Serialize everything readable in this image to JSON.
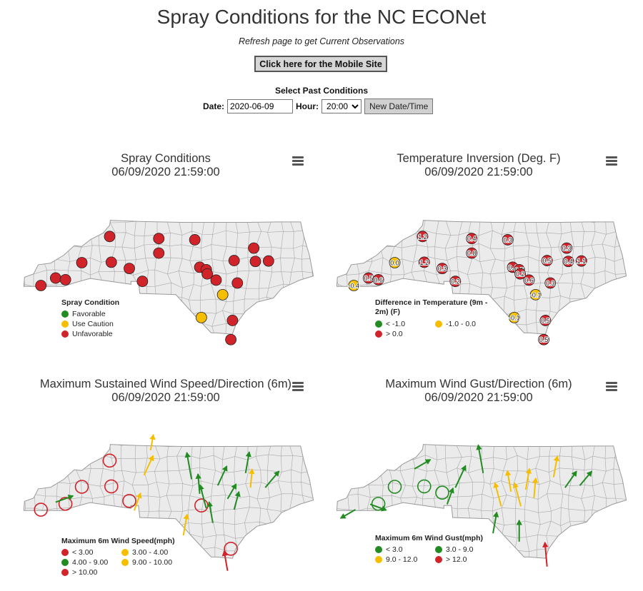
{
  "page": {
    "title": "Spray Conditions for the NC ECONet",
    "subtitle": "Refresh page to get Current Observations",
    "mobile_button": "Click here for the Mobile Site",
    "past_heading": "Select Past Conditions",
    "date_label": "Date:",
    "date_value": "2020-06-09",
    "hour_label": "Hour:",
    "hour_value": "20:00",
    "refresh_button": "New Date/Time"
  },
  "colors": {
    "favorable": "#228B22",
    "caution": "#F6BE00",
    "unfavorable": "#D1232A",
    "map_fill": "#ebebeb",
    "map_border": "#9a9a9a"
  },
  "icons": [
    "menu-icon"
  ],
  "panels": {
    "spray": {
      "title": "Spray Conditions",
      "timestamp": "06/09/2020 21:59:00",
      "legend_title": "Spray Condition",
      "legend": [
        {
          "label": "Favorable",
          "color": "#228B22"
        },
        {
          "label": "Use Caution",
          "color": "#F6BE00"
        },
        {
          "label": "Unfavorable",
          "color": "#D1232A"
        }
      ],
      "stations": [
        {
          "lon": -83.8,
          "lat": 35.02,
          "c": "unfavorable"
        },
        {
          "lon": -83.35,
          "lat": 35.2,
          "c": "unfavorable"
        },
        {
          "lon": -83.05,
          "lat": 35.16,
          "c": "unfavorable"
        },
        {
          "lon": -82.55,
          "lat": 35.57,
          "c": "unfavorable"
        },
        {
          "lon": -81.7,
          "lat": 36.2,
          "c": "unfavorable"
        },
        {
          "lon": -81.65,
          "lat": 35.58,
          "c": "unfavorable"
        },
        {
          "lon": -81.1,
          "lat": 35.43,
          "c": "unfavorable"
        },
        {
          "lon": -80.7,
          "lat": 35.12,
          "c": "unfavorable"
        },
        {
          "lon": -80.2,
          "lat": 36.15,
          "c": "unfavorable"
        },
        {
          "lon": -80.2,
          "lat": 35.8,
          "c": "unfavorable"
        },
        {
          "lon": -79.1,
          "lat": 36.12,
          "c": "unfavorable"
        },
        {
          "lon": -78.95,
          "lat": 35.46,
          "c": "unfavorable"
        },
        {
          "lon": -78.75,
          "lat": 35.4,
          "c": "unfavorable"
        },
        {
          "lon": -78.72,
          "lat": 35.3,
          "c": "unfavorable"
        },
        {
          "lon": -78.45,
          "lat": 35.15,
          "c": "unfavorable"
        },
        {
          "lon": -77.9,
          "lat": 35.62,
          "c": "unfavorable"
        },
        {
          "lon": -77.3,
          "lat": 35.92,
          "c": "unfavorable"
        },
        {
          "lon": -77.25,
          "lat": 35.6,
          "c": "unfavorable"
        },
        {
          "lon": -76.85,
          "lat": 35.61,
          "c": "unfavorable"
        },
        {
          "lon": -77.8,
          "lat": 35.08,
          "c": "unfavorable"
        },
        {
          "lon": -78.25,
          "lat": 34.8,
          "c": "caution"
        },
        {
          "lon": -78.9,
          "lat": 34.25,
          "c": "caution"
        },
        {
          "lon": -77.95,
          "lat": 34.18,
          "c": "unfavorable"
        },
        {
          "lon": -78.0,
          "lat": 33.72,
          "c": "unfavorable"
        }
      ]
    },
    "inversion": {
      "title": "Temperature Inversion (Deg. F)",
      "timestamp": "06/09/2020 21:59:00",
      "legend_title": "Difference in Temperature (9m - 2m) (F)",
      "legend": [
        {
          "label": "< -1.0",
          "color": "#228B22"
        },
        {
          "label": "-1.0 - 0.0",
          "color": "#F6BE00"
        },
        {
          "label": "> 0.0",
          "color": "#D1232A"
        }
      ],
      "stations": [
        {
          "lon": -83.8,
          "lat": 35.02,
          "v": "-0.4",
          "c": "caution"
        },
        {
          "lon": -83.35,
          "lat": 35.2,
          "v": "0.5",
          "c": "unfavorable"
        },
        {
          "lon": -83.05,
          "lat": 35.16,
          "v": "0.6",
          "c": "unfavorable"
        },
        {
          "lon": -82.55,
          "lat": 35.57,
          "v": "0.0",
          "c": "caution"
        },
        {
          "lon": -81.7,
          "lat": 36.2,
          "v": "1.2",
          "c": "unfavorable"
        },
        {
          "lon": -81.65,
          "lat": 35.58,
          "v": "1.2",
          "c": "unfavorable"
        },
        {
          "lon": -81.1,
          "lat": 35.43,
          "v": "0.3",
          "c": "unfavorable"
        },
        {
          "lon": -80.7,
          "lat": 35.12,
          "v": "0.2",
          "c": "unfavorable"
        },
        {
          "lon": -80.2,
          "lat": 36.15,
          "v": "0.4",
          "c": "unfavorable"
        },
        {
          "lon": -80.2,
          "lat": 35.8,
          "v": "0.8",
          "c": "unfavorable"
        },
        {
          "lon": -79.1,
          "lat": 36.12,
          "v": "0.3",
          "c": "unfavorable"
        },
        {
          "lon": -78.95,
          "lat": 35.46,
          "v": "0.4",
          "c": "unfavorable"
        },
        {
          "lon": -78.75,
          "lat": 35.4,
          "v": "0.5",
          "c": "unfavorable"
        },
        {
          "lon": -78.72,
          "lat": 35.3,
          "v": "0.2",
          "c": "unfavorable"
        },
        {
          "lon": -78.45,
          "lat": 35.15,
          "v": "0.6",
          "c": "unfavorable"
        },
        {
          "lon": -77.9,
          "lat": 35.62,
          "v": "0.5",
          "c": "unfavorable"
        },
        {
          "lon": -77.3,
          "lat": 35.92,
          "v": "0.3",
          "c": "unfavorable"
        },
        {
          "lon": -77.25,
          "lat": 35.6,
          "v": "0.4",
          "c": "unfavorable"
        },
        {
          "lon": -76.85,
          "lat": 35.61,
          "v": "1.1",
          "c": "unfavorable"
        },
        {
          "lon": -77.8,
          "lat": 35.08,
          "v": "0.3",
          "c": "unfavorable"
        },
        {
          "lon": -78.25,
          "lat": 34.8,
          "v": "-0.1",
          "c": "caution"
        },
        {
          "lon": -78.9,
          "lat": 34.25,
          "v": "-0.1",
          "c": "caution"
        },
        {
          "lon": -77.95,
          "lat": 34.18,
          "v": "0.5",
          "c": "unfavorable"
        },
        {
          "lon": -78.0,
          "lat": 33.72,
          "v": "0.5",
          "c": "unfavorable"
        }
      ]
    },
    "wind": {
      "title": "Maximum Sustained Wind Speed/Direction (6m)",
      "timestamp": "06/09/2020 21:59:00",
      "legend_title": "Maximum 6m Wind Speed(mph)",
      "legend": [
        {
          "label": "< 3.00",
          "color": "#D1232A"
        },
        {
          "label": "3.00 - 4.00",
          "color": "#F6BE00"
        },
        {
          "label": "4.00 - 9.00",
          "color": "#228B22"
        },
        {
          "label": "9.00 - 10.00",
          "color": "#F6BE00"
        },
        {
          "label": "> 10.00",
          "color": "#D1232A"
        }
      ],
      "calm": [
        {
          "lon": -83.8,
          "lat": 35.02
        },
        {
          "lon": -83.05,
          "lat": 35.16
        },
        {
          "lon": -82.55,
          "lat": 35.57
        },
        {
          "lon": -81.7,
          "lat": 36.2
        },
        {
          "lon": -81.65,
          "lat": 35.58
        },
        {
          "lon": -81.1,
          "lat": 35.23
        },
        {
          "lon": -78.9,
          "lat": 35.12
        },
        {
          "lon": -78.0,
          "lat": 34.08
        }
      ],
      "arrows": [
        {
          "lon": -83.35,
          "lat": 35.2,
          "dir": 70,
          "len": 26,
          "c": "favorable"
        },
        {
          "lon": -80.95,
          "lat": 35.0,
          "dir": 20,
          "len": 26,
          "c": "caution"
        },
        {
          "lon": -80.65,
          "lat": 35.85,
          "dir": 25,
          "len": 30,
          "c": "caution"
        },
        {
          "lon": -80.45,
          "lat": 36.45,
          "dir": 10,
          "len": 22,
          "c": "caution"
        },
        {
          "lon": -79.2,
          "lat": 35.75,
          "dir": -10,
          "len": 38,
          "c": "favorable"
        },
        {
          "lon": -78.95,
          "lat": 35.4,
          "dir": -5,
          "len": 28,
          "c": "favorable"
        },
        {
          "lon": -78.75,
          "lat": 35.05,
          "dir": -15,
          "len": 34,
          "c": "favorable"
        },
        {
          "lon": -78.55,
          "lat": 34.7,
          "dir": -10,
          "len": 30,
          "c": "favorable"
        },
        {
          "lon": -78.4,
          "lat": 35.6,
          "dir": 25,
          "len": 30,
          "c": "favorable"
        },
        {
          "lon": -78.1,
          "lat": 35.28,
          "dir": 30,
          "len": 24,
          "c": "favorable"
        },
        {
          "lon": -77.9,
          "lat": 35.02,
          "dir": 15,
          "len": 26,
          "c": "favorable"
        },
        {
          "lon": -77.55,
          "lat": 35.9,
          "dir": 10,
          "len": 30,
          "c": "favorable"
        },
        {
          "lon": -77.4,
          "lat": 35.55,
          "dir": 5,
          "len": 26,
          "c": "caution"
        },
        {
          "lon": -76.95,
          "lat": 35.55,
          "dir": 40,
          "len": 30,
          "c": "favorable"
        },
        {
          "lon": -79.45,
          "lat": 34.4,
          "dir": 10,
          "len": 30,
          "c": "caution"
        },
        {
          "lon": -78.1,
          "lat": 33.55,
          "dir": -10,
          "len": 28,
          "c": "unfavorable"
        }
      ]
    },
    "gust": {
      "title": "Maximum Wind Gust/Direction (6m)",
      "timestamp": "06/09/2020 21:59:00",
      "legend_title": "Maximum 6m Wind Gust(mph)",
      "legend": [
        {
          "label": "< 3.0",
          "color": "#228B22"
        },
        {
          "label": "3.0 - 9.0",
          "color": "#228B22"
        },
        {
          "label": "9.0 - 12.0",
          "color": "#F6BE00"
        },
        {
          "label": "> 12.0",
          "color": "#D1232A"
        }
      ],
      "calm": [
        {
          "lon": -83.05,
          "lat": 35.16
        },
        {
          "lon": -82.55,
          "lat": 35.57
        },
        {
          "lon": -81.65,
          "lat": 35.58
        },
        {
          "lon": -81.1,
          "lat": 35.43
        }
      ],
      "arrows": [
        {
          "lon": -83.75,
          "lat": 35.02,
          "dir": -120,
          "len": 24,
          "c": "favorable"
        },
        {
          "lon": -83.3,
          "lat": 35.15,
          "dir": 110,
          "len": 24,
          "c": "favorable"
        },
        {
          "lon": -81.95,
          "lat": 36.0,
          "dir": 60,
          "len": 26,
          "c": "favorable"
        },
        {
          "lon": -80.7,
          "lat": 35.55,
          "dir": 25,
          "len": 34,
          "c": "favorable"
        },
        {
          "lon": -80.95,
          "lat": 35.15,
          "dir": 20,
          "len": 24,
          "c": "favorable"
        },
        {
          "lon": -79.85,
          "lat": 35.9,
          "dir": -10,
          "len": 40,
          "c": "favorable"
        },
        {
          "lon": -79.3,
          "lat": 35.1,
          "dir": -15,
          "len": 34,
          "c": "caution"
        },
        {
          "lon": -79.0,
          "lat": 35.45,
          "dir": -10,
          "len": 30,
          "c": "caution"
        },
        {
          "lon": -78.7,
          "lat": 35.1,
          "dir": -15,
          "len": 34,
          "c": "caution"
        },
        {
          "lon": -78.55,
          "lat": 35.5,
          "dir": 10,
          "len": 30,
          "c": "caution"
        },
        {
          "lon": -78.3,
          "lat": 35.3,
          "dir": 5,
          "len": 28,
          "c": "caution"
        },
        {
          "lon": -77.7,
          "lat": 35.8,
          "dir": 10,
          "len": 30,
          "c": "caution"
        },
        {
          "lon": -77.35,
          "lat": 35.55,
          "dir": 35,
          "len": 28,
          "c": "favorable"
        },
        {
          "lon": -76.9,
          "lat": 35.6,
          "dir": 40,
          "len": 26,
          "c": "favorable"
        },
        {
          "lon": -78.75,
          "lat": 34.25,
          "dir": 0,
          "len": 30,
          "c": "favorable"
        },
        {
          "lon": -79.55,
          "lat": 34.45,
          "dir": 10,
          "len": 30,
          "c": "favorable"
        },
        {
          "lon": -77.9,
          "lat": 33.65,
          "dir": -5,
          "len": 34,
          "c": "unfavorable"
        }
      ]
    }
  },
  "map_bounds": {
    "lon_min": -84.35,
    "lon_max": -75.45,
    "lat_min": 33.75,
    "lat_max": 36.6
  }
}
